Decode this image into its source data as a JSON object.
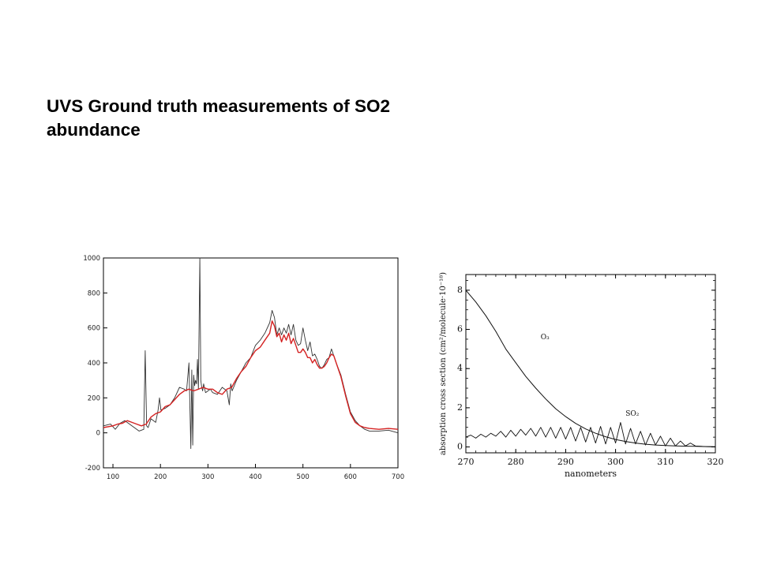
{
  "slide": {
    "title_line1": "UVS Ground truth measurements of SO2",
    "title_line2": "abundance"
  },
  "colors": {
    "observed": "#333333",
    "model": "#d42222",
    "axes": "#000000"
  },
  "chart_data": [
    {
      "type": "line",
      "title": "",
      "xlabel": "",
      "ylabel": "",
      "xlim": [
        80,
        700
      ],
      "ylim": [
        -200,
        1000
      ],
      "xticks": [
        "100",
        "200",
        "300",
        "400",
        "500",
        "600",
        "700"
      ],
      "yticks": [
        "-200",
        "0",
        "200",
        "400",
        "600",
        "800",
        "1000"
      ],
      "grid": false,
      "series": [
        {
          "color": "#333333",
          "x": [
            80,
            95,
            105,
            115,
            125,
            135,
            145,
            155,
            165,
            168,
            171,
            174,
            180,
            190,
            195,
            198,
            201,
            210,
            220,
            230,
            240,
            250,
            255,
            260,
            264,
            266,
            268,
            270,
            272,
            274,
            276,
            278,
            280,
            283,
            285,
            287,
            289,
            291,
            295,
            300,
            305,
            310,
            320,
            330,
            340,
            345,
            348,
            351,
            360,
            370,
            380,
            390,
            400,
            410,
            420,
            430,
            435,
            440,
            445,
            450,
            455,
            460,
            465,
            470,
            475,
            480,
            485,
            490,
            495,
            500,
            505,
            510,
            515,
            520,
            525,
            530,
            535,
            540,
            545,
            550,
            555,
            560,
            565,
            570,
            580,
            590,
            600,
            610,
            620,
            630,
            640,
            660,
            680,
            700
          ],
          "y": [
            40,
            50,
            20,
            55,
            70,
            50,
            30,
            10,
            20,
            470,
            40,
            30,
            80,
            60,
            130,
            200,
            130,
            140,
            160,
            200,
            260,
            250,
            240,
            400,
            -90,
            360,
            -70,
            330,
            270,
            300,
            280,
            420,
            250,
            1000,
            300,
            260,
            240,
            280,
            230,
            240,
            250,
            230,
            220,
            260,
            240,
            160,
            280,
            240,
            300,
            350,
            400,
            430,
            500,
            530,
            570,
            630,
            700,
            660,
            560,
            600,
            560,
            600,
            570,
            620,
            560,
            620,
            530,
            500,
            510,
            600,
            530,
            470,
            520,
            440,
            450,
            420,
            380,
            370,
            390,
            420,
            430,
            480,
            440,
            400,
            330,
            220,
            120,
            70,
            40,
            20,
            10,
            10,
            15,
            0
          ]
        },
        {
          "color": "#d42222",
          "x": [
            80,
            100,
            110,
            120,
            130,
            140,
            150,
            160,
            170,
            180,
            190,
            200,
            210,
            220,
            230,
            240,
            250,
            260,
            270,
            280,
            290,
            300,
            310,
            320,
            330,
            340,
            350,
            360,
            370,
            380,
            390,
            400,
            410,
            420,
            430,
            435,
            440,
            445,
            450,
            455,
            460,
            465,
            470,
            475,
            480,
            485,
            490,
            495,
            500,
            505,
            510,
            515,
            520,
            525,
            530,
            535,
            540,
            545,
            550,
            555,
            560,
            565,
            570,
            580,
            590,
            600,
            610,
            620,
            630,
            640,
            660,
            680,
            700
          ],
          "y": [
            30,
            40,
            50,
            55,
            70,
            60,
            50,
            40,
            50,
            90,
            110,
            120,
            150,
            160,
            190,
            220,
            240,
            250,
            240,
            250,
            260,
            250,
            250,
            230,
            220,
            250,
            260,
            310,
            350,
            380,
            430,
            470,
            490,
            530,
            570,
            640,
            610,
            550,
            570,
            520,
            560,
            530,
            570,
            510,
            540,
            500,
            460,
            460,
            480,
            460,
            430,
            430,
            400,
            420,
            390,
            370,
            370,
            380,
            400,
            430,
            450,
            440,
            400,
            320,
            210,
            110,
            60,
            40,
            30,
            25,
            20,
            25,
            20
          ]
        }
      ]
    },
    {
      "type": "line",
      "title": "",
      "xlabel": "nanometers",
      "ylabel": "absorption cross section (cm²/molecule·10⁻¹⁸)",
      "xlim": [
        270,
        320
      ],
      "ylim": [
        -0.3,
        8.8
      ],
      "xticks": [
        "270",
        "280",
        "290",
        "300",
        "310",
        "320"
      ],
      "yticks": [
        "0",
        "2",
        "4",
        "6",
        "8"
      ],
      "grid": false,
      "series": [
        {
          "name": "O₃",
          "color": "#111111",
          "x": [
            270,
            272,
            274,
            276,
            278,
            280,
            282,
            284,
            286,
            288,
            290,
            292,
            294,
            296,
            298,
            300,
            302,
            304,
            306,
            308,
            310,
            312,
            314,
            316,
            318,
            320
          ],
          "y": [
            8.0,
            7.4,
            6.7,
            5.9,
            5.0,
            4.3,
            3.6,
            3.0,
            2.45,
            1.95,
            1.55,
            1.2,
            0.92,
            0.7,
            0.52,
            0.38,
            0.28,
            0.2,
            0.14,
            0.1,
            0.07,
            0.05,
            0.04,
            0.03,
            0.02,
            0.01
          ]
        },
        {
          "name": "SO₂",
          "color": "#111111",
          "x": [
            270,
            271,
            272,
            273,
            274,
            275,
            276,
            277,
            278,
            279,
            280,
            281,
            282,
            283,
            284,
            285,
            286,
            287,
            288,
            289,
            290,
            291,
            292,
            293,
            294,
            295,
            296,
            297,
            298,
            299,
            300,
            301,
            302,
            303,
            304,
            305,
            306,
            307,
            308,
            309,
            310,
            311,
            312,
            313,
            314,
            315,
            316,
            318,
            320
          ],
          "y": [
            0.5,
            0.6,
            0.45,
            0.65,
            0.5,
            0.7,
            0.55,
            0.8,
            0.5,
            0.85,
            0.55,
            0.9,
            0.6,
            0.95,
            0.55,
            1.0,
            0.5,
            1.0,
            0.45,
            1.0,
            0.4,
            1.0,
            0.3,
            1.0,
            0.25,
            1.0,
            0.2,
            1.05,
            0.15,
            1.0,
            0.2,
            1.25,
            0.15,
            0.95,
            0.15,
            0.8,
            0.1,
            0.7,
            0.1,
            0.55,
            0.05,
            0.45,
            0.05,
            0.3,
            0.05,
            0.2,
            0.05,
            0.02,
            0.0
          ]
        }
      ],
      "annotations": [
        {
          "text": "O₃",
          "x": 285,
          "y": 5.5
        },
        {
          "text": "SO₂",
          "x": 302,
          "y": 1.6
        }
      ]
    }
  ]
}
